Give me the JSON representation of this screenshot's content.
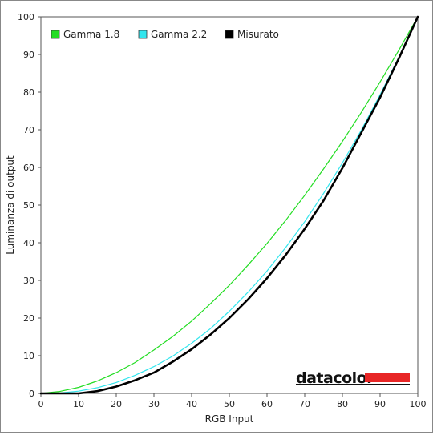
{
  "chart_data": {
    "type": "line",
    "title": "",
    "xlabel": "RGB Input",
    "ylabel": "Luminanza di output",
    "xlim": [
      0,
      100
    ],
    "ylim": [
      0,
      100
    ],
    "x_ticks": [
      "0",
      "10",
      "20",
      "30",
      "40",
      "50",
      "60",
      "70",
      "80",
      "90",
      "100"
    ],
    "y_ticks": [
      "0",
      "10",
      "20",
      "30",
      "40",
      "50",
      "60",
      "70",
      "80",
      "90",
      "100"
    ],
    "grid": false,
    "legend_position": "top-left",
    "x": [
      0,
      5,
      10,
      15,
      20,
      25,
      30,
      35,
      40,
      45,
      50,
      55,
      60,
      65,
      70,
      75,
      80,
      85,
      90,
      95,
      100
    ],
    "series": [
      {
        "name": "Gamma 1.8",
        "color": "#22dd22",
        "values": [
          0,
          0.5,
          1.6,
          3.3,
          5.5,
          8.2,
          11.5,
          15.1,
          19.2,
          23.8,
          28.7,
          34.1,
          39.8,
          46.0,
          52.6,
          59.6,
          66.9,
          74.6,
          82.7,
          91.2,
          100
        ]
      },
      {
        "name": "Gamma 2.2",
        "color": "#33e6ee",
        "values": [
          0,
          0.1,
          0.6,
          1.5,
          2.9,
          4.8,
          7.1,
          9.9,
          13.3,
          17.2,
          21.8,
          26.9,
          32.5,
          38.8,
          45.6,
          53.1,
          61.2,
          69.9,
          79.3,
          89.3,
          100
        ]
      },
      {
        "name": "Misurato",
        "color": "#000000",
        "values": [
          0,
          0,
          0,
          0.6,
          1.8,
          3.5,
          5.5,
          8.4,
          11.7,
          15.6,
          20.0,
          25.0,
          30.6,
          36.8,
          43.7,
          51.2,
          59.8,
          69.2,
          78.6,
          89.0,
          100
        ]
      }
    ]
  },
  "logo": {
    "text": "datacolor",
    "bar_color": "#e82626"
  }
}
